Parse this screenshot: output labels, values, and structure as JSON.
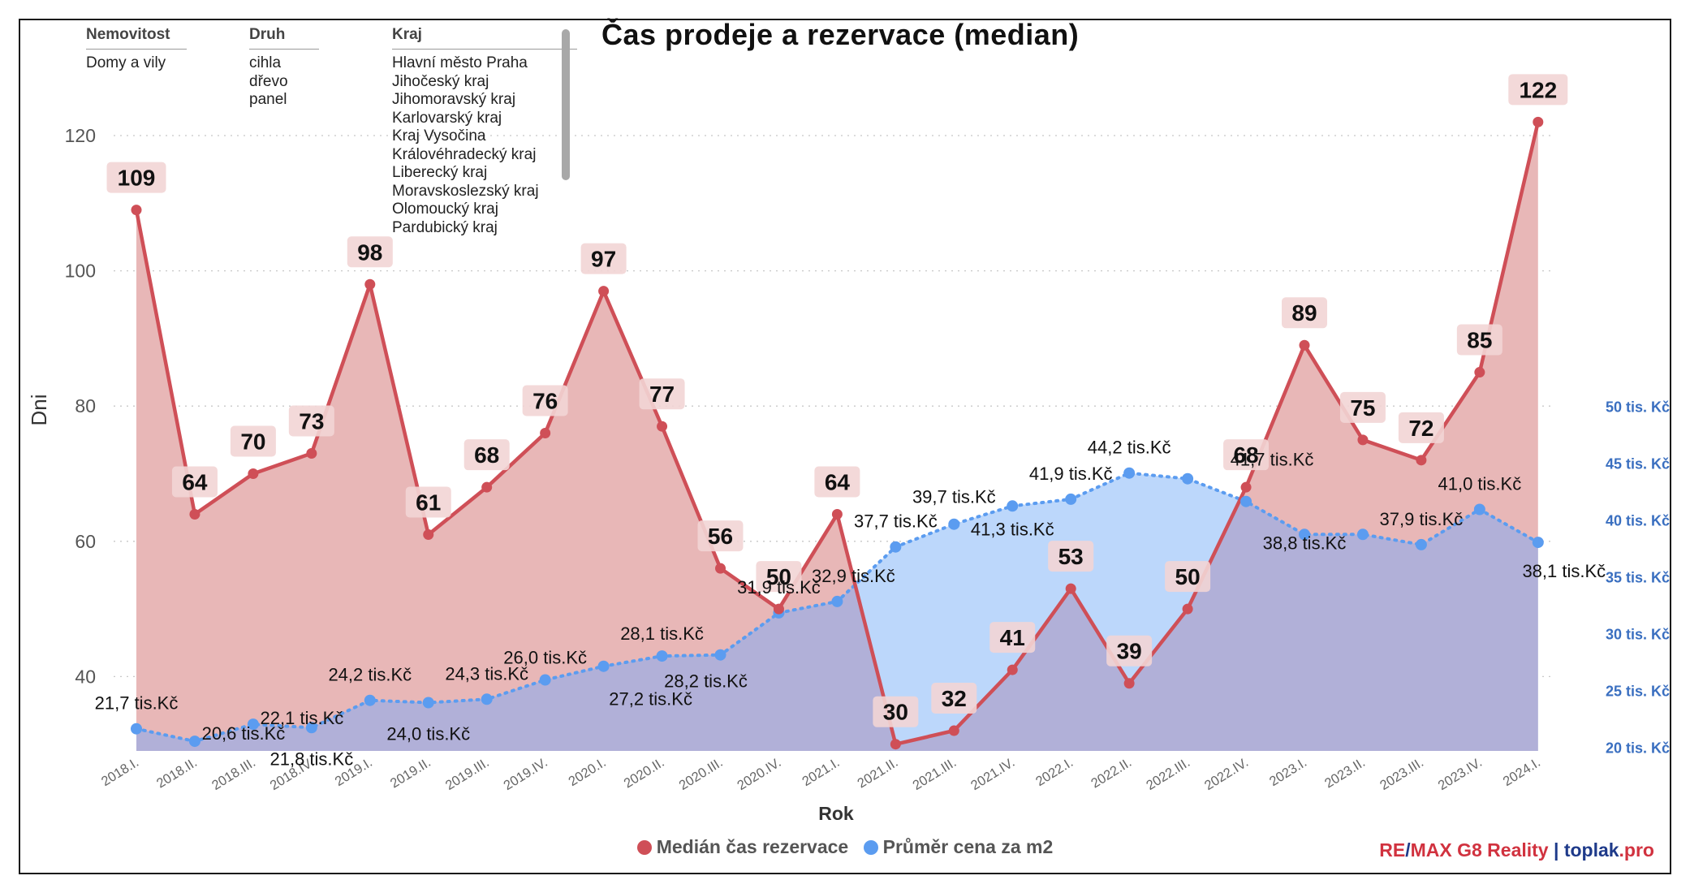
{
  "title": "Čas prodeje a rezervace (median)",
  "filters": {
    "nemovitost": {
      "header": "Nemovitost",
      "items": [
        "Domy a vily"
      ]
    },
    "druh": {
      "header": "Druh",
      "items": [
        "cihla",
        "dřevo",
        "panel"
      ]
    },
    "kraj": {
      "header": "Kraj",
      "items": [
        "Hlavní město Praha",
        "Jihočeský kraj",
        "Jihomoravský kraj",
        "Karlovarský kraj",
        "Kraj Vysočina",
        "Královéhradecký kraj",
        "Liberecký kraj",
        "Moravskoslezský kraj",
        "Olomoucký kraj",
        "Pardubický kraj"
      ]
    }
  },
  "legend": {
    "series1": "Medián čas rezervace",
    "series2": "Průměr cena za m2"
  },
  "brand": {
    "part1": "RE",
    "slash": "/",
    "part2": "MAX G8 Reality",
    "sep": " | ",
    "part3": "toplak",
    "part4": ".pro"
  },
  "colors": {
    "red": "#cf4f57",
    "red_fill": "#e8b7b7",
    "blue": "#5b9cf0",
    "blue_fill": "#bcd7fb",
    "overlap": "#b1b0d8",
    "label_bg": "#f2d5d5",
    "right_axis": "#3a6fc0"
  },
  "chart_data": {
    "type": "area",
    "xlabel": "Rok",
    "ylabel": "Dni",
    "categories": [
      "2018.I.",
      "2018.II.",
      "2018.III.",
      "2018.IV.",
      "2019.I.",
      "2019.II.",
      "2019.III.",
      "2019.IV.",
      "2020.I.",
      "2020.II.",
      "2020.III.",
      "2020.IV.",
      "2021.I.",
      "2021.II.",
      "2021.III.",
      "2021.IV.",
      "2022.I.",
      "2022.II.",
      "2022.III.",
      "2022.IV.",
      "2023.I.",
      "2023.II.",
      "2023.III.",
      "2023.IV.",
      "2024.I."
    ],
    "y_left": {
      "ticks": [
        40,
        60,
        80,
        100,
        120
      ],
      "range": [
        30,
        125
      ]
    },
    "y_right": {
      "ticks": [
        20,
        25,
        30,
        35,
        40,
        45,
        50
      ],
      "tick_labels": [
        "20 tis. Kč",
        "25 tis. Kč",
        "30 tis. Kč",
        "35 tis. Kč",
        "40 tis. Kč",
        "45 tis. Kč",
        "50 tis. Kč"
      ],
      "range": [
        20,
        51
      ]
    },
    "grid": "horizontal dotted",
    "series": [
      {
        "name": "Medián čas rezervace",
        "axis": "left",
        "style": "solid line with filled area",
        "values": [
          109,
          64,
          70,
          73,
          98,
          61,
          68,
          76,
          97,
          77,
          56,
          50,
          64,
          30,
          32,
          41,
          53,
          39,
          50,
          68,
          89,
          75,
          72,
          85,
          122
        ],
        "labels": [
          "109",
          "64",
          "70",
          "73",
          "98",
          "61",
          "68",
          "76",
          "97",
          "77",
          "56",
          "50",
          "64",
          "30",
          "32",
          "41",
          "53",
          "39",
          "50",
          "68",
          "89",
          "75",
          "72",
          "85",
          "122"
        ]
      },
      {
        "name": "Průměr cena za m2",
        "axis": "right",
        "style": "dotted line with filled area",
        "values": [
          21.7,
          20.6,
          22.1,
          21.8,
          24.2,
          24.0,
          24.3,
          26.0,
          27.2,
          28.1,
          28.2,
          31.9,
          32.9,
          37.7,
          39.7,
          41.3,
          41.9,
          44.2,
          43.7,
          41.7,
          38.8,
          38.8,
          37.9,
          41.0,
          38.1
        ],
        "labels": [
          "21,7 tis.Kč",
          "20,6 tis.Kč",
          "22,1 tis.Kč",
          "21,8 tis.Kč",
          "24,2 tis.Kč",
          "24,0 tis.Kč",
          "24,3 tis.Kč",
          "26,0 tis.Kč",
          "27,2 tis.Kč",
          "28,1 tis.Kč",
          "28,2 tis.Kč",
          "31,9 tis.Kč",
          "32,9 tis.Kč",
          "37,7 tis.Kč",
          "39,7 tis.Kč",
          "41,3 tis.Kč",
          "41,9 tis.Kč",
          "44,2 tis.Kč",
          "",
          "41,7 tis.Kč",
          "38,8 tis.Kč",
          "",
          "37,9 tis.Kč",
          "41,0 tis.Kč",
          "38,1 tis.Kč"
        ]
      }
    ]
  }
}
